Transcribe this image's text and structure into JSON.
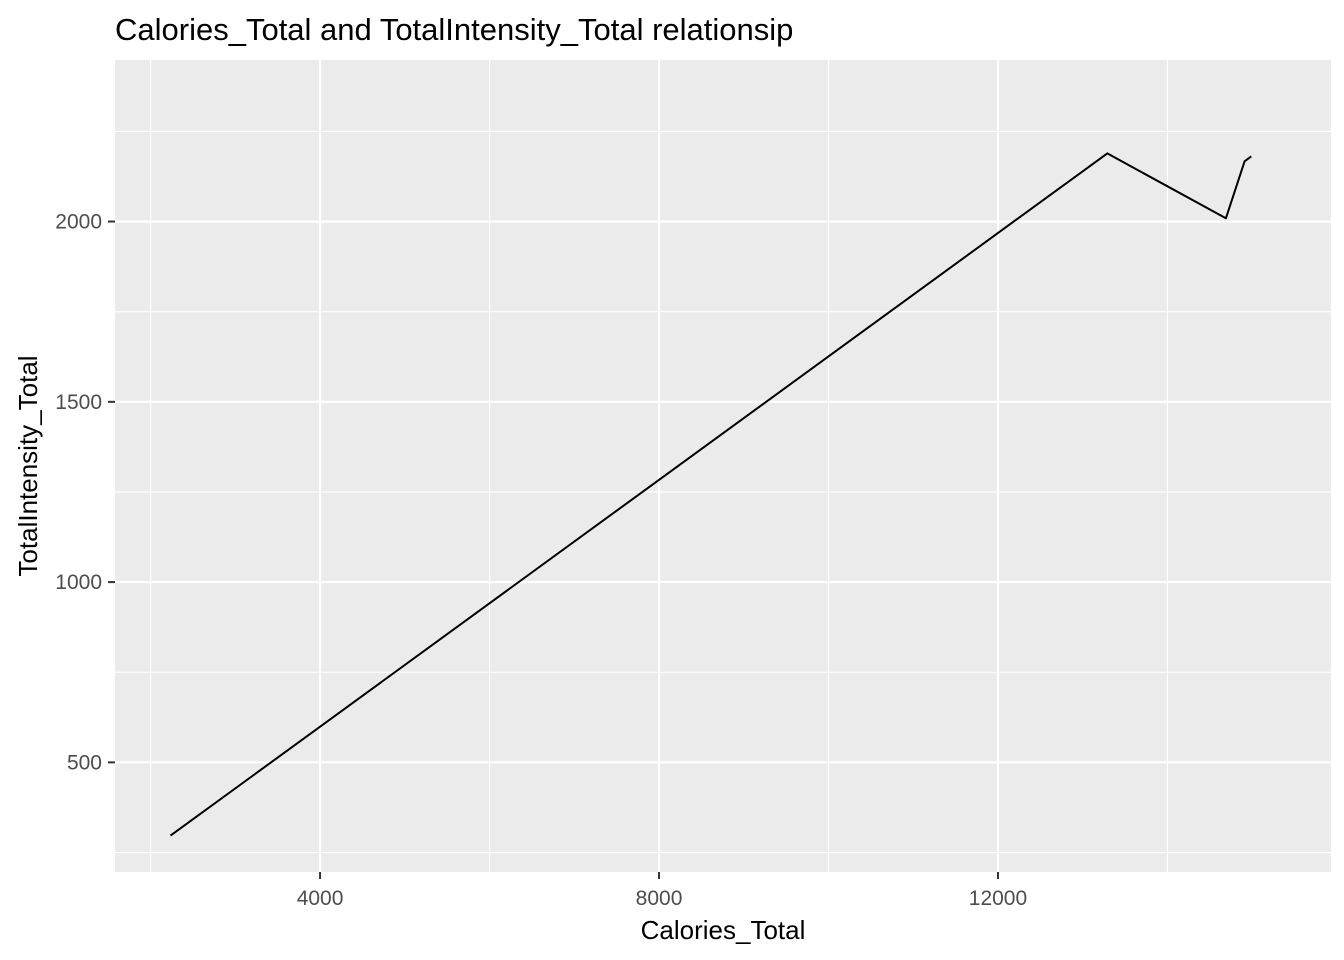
{
  "chart_data": {
    "type": "line",
    "title": "Calories_Total and TotalIntensity_Total relationsip",
    "xlabel": "Calories_Total",
    "ylabel": "TotalIntensity_Total",
    "xlim": [
      1580,
      15930
    ],
    "ylim": [
      196,
      2448
    ],
    "x_major_ticks": [
      4000,
      8000,
      12000
    ],
    "x_minor_ticks": [
      2000,
      6000,
      10000,
      14000
    ],
    "y_major_ticks": [
      500,
      1000,
      1500,
      2000
    ],
    "y_minor_ticks": [
      250,
      750,
      1250,
      1750,
      2250
    ],
    "grid": true,
    "background": "#ebebeb",
    "grid_color": "#ffffff",
    "line_color": "#000000",
    "series": [
      {
        "name": "TotalIntensity_Total",
        "x": [
          2235,
          13290,
          14690,
          14910,
          14990
        ],
        "y": [
          297,
          2189,
          2009,
          2167,
          2181
        ]
      }
    ]
  }
}
